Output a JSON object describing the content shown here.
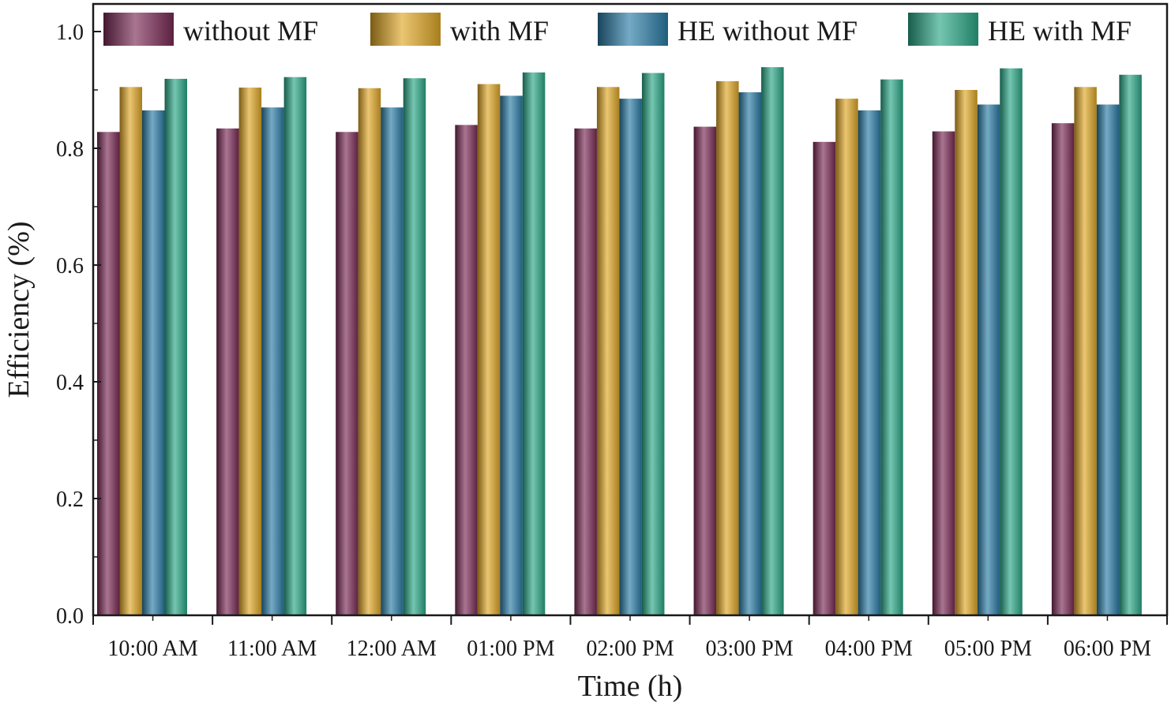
{
  "chart_data": {
    "type": "bar",
    "title": "",
    "xlabel": "Time (h)",
    "ylabel": "Efficiency (%)",
    "ylim": [
      0,
      1.0
    ],
    "yticks": [
      "0.0",
      "0.2",
      "0.4",
      "0.6",
      "0.8",
      "1.0"
    ],
    "ytick_values": [
      0,
      0.2,
      0.4,
      0.6,
      0.8,
      1.0
    ],
    "categories": [
      "10:00 AM",
      "11:00 AM",
      "12:00 AM",
      "01:00 PM",
      "02:00 PM",
      "03:00 PM",
      "04:00 PM",
      "05:00 PM",
      "06:00 PM"
    ],
    "legend_position": "top",
    "grid": false,
    "series": [
      {
        "name": "without MF",
        "color": "#7a2a55",
        "values": [
          0.828,
          0.834,
          0.828,
          0.84,
          0.834,
          0.837,
          0.811,
          0.829,
          0.843
        ]
      },
      {
        "name": "with MF",
        "color": "#e0a826",
        "values": [
          0.905,
          0.904,
          0.903,
          0.91,
          0.905,
          0.915,
          0.885,
          0.9,
          0.905
        ]
      },
      {
        "name": "HE without MF",
        "color": "#2a7ca6",
        "values": [
          0.865,
          0.87,
          0.87,
          0.89,
          0.885,
          0.896,
          0.865,
          0.875,
          0.875
        ]
      },
      {
        "name": "HE with MF",
        "color": "#2aa887",
        "values": [
          0.919,
          0.922,
          0.92,
          0.93,
          0.929,
          0.939,
          0.918,
          0.937,
          0.926
        ]
      }
    ]
  }
}
